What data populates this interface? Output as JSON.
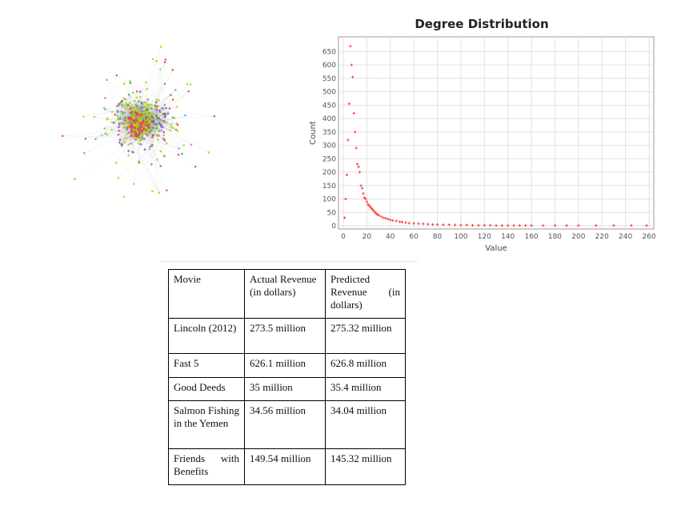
{
  "network_graph": {
    "palette": [
      "#e8337a",
      "#9be000",
      "#7b53d6",
      "#2fb7e0",
      "#c9b200",
      "#e84d2f",
      "#26b06b",
      "#d85cf0",
      "#3f6fe8",
      "#8a8a8a"
    ]
  },
  "chart_data": {
    "type": "scatter",
    "title": "Degree Distribution",
    "xlabel": "Value",
    "ylabel": "Count",
    "xlim": [
      0,
      260
    ],
    "ylim": [
      0,
      675
    ],
    "xticks": [
      0,
      20,
      40,
      60,
      80,
      100,
      120,
      140,
      160,
      180,
      200,
      220,
      240,
      260
    ],
    "yticks": [
      0,
      50,
      100,
      150,
      200,
      250,
      300,
      350,
      400,
      450,
      500,
      550,
      600,
      650
    ],
    "grid": true,
    "point_color": "#ff3333",
    "points": [
      [
        1,
        30
      ],
      [
        2,
        100
      ],
      [
        3,
        190
      ],
      [
        4,
        320
      ],
      [
        5,
        455
      ],
      [
        6,
        670
      ],
      [
        7,
        600
      ],
      [
        8,
        555
      ],
      [
        9,
        420
      ],
      [
        10,
        350
      ],
      [
        11,
        290
      ],
      [
        12,
        230
      ],
      [
        13,
        220
      ],
      [
        14,
        200
      ],
      [
        15,
        150
      ],
      [
        16,
        140
      ],
      [
        17,
        120
      ],
      [
        18,
        105
      ],
      [
        19,
        100
      ],
      [
        20,
        90
      ],
      [
        21,
        80
      ],
      [
        22,
        75
      ],
      [
        23,
        70
      ],
      [
        24,
        65
      ],
      [
        25,
        60
      ],
      [
        26,
        55
      ],
      [
        27,
        50
      ],
      [
        28,
        45
      ],
      [
        29,
        42
      ],
      [
        30,
        40
      ],
      [
        32,
        35
      ],
      [
        34,
        30
      ],
      [
        36,
        28
      ],
      [
        38,
        25
      ],
      [
        40,
        22
      ],
      [
        42,
        20
      ],
      [
        45,
        18
      ],
      [
        48,
        15
      ],
      [
        50,
        14
      ],
      [
        53,
        12
      ],
      [
        56,
        10
      ],
      [
        60,
        9
      ],
      [
        64,
        8
      ],
      [
        68,
        7
      ],
      [
        72,
        6
      ],
      [
        76,
        5
      ],
      [
        80,
        5
      ],
      [
        85,
        4
      ],
      [
        90,
        4
      ],
      [
        95,
        3
      ],
      [
        100,
        3
      ],
      [
        105,
        3
      ],
      [
        110,
        2
      ],
      [
        115,
        2
      ],
      [
        120,
        2
      ],
      [
        125,
        2
      ],
      [
        130,
        1
      ],
      [
        135,
        1
      ],
      [
        140,
        1
      ],
      [
        145,
        1
      ],
      [
        150,
        1
      ],
      [
        155,
        1
      ],
      [
        160,
        1
      ],
      [
        170,
        1
      ],
      [
        180,
        1
      ],
      [
        190,
        1
      ],
      [
        200,
        1
      ],
      [
        215,
        1
      ],
      [
        230,
        1
      ],
      [
        245,
        1
      ],
      [
        258,
        1
      ]
    ]
  },
  "table": {
    "headers": [
      "Movie",
      "Actual Revenue (in dollars)",
      "Predicted Revenue (in dollars)"
    ],
    "rows": [
      [
        "Lincoln (2012)",
        "273.5 million",
        "275.32 million"
      ],
      [
        "Fast 5",
        "626.1 million",
        "626.8 million"
      ],
      [
        "Good Deeds",
        "35 million",
        "35.4 million"
      ],
      [
        "Salmon Fishing in the Yemen",
        "34.56 million",
        "34.04 million"
      ],
      [
        "Friends with Benefits",
        "149.54 million",
        "145.32 million"
      ]
    ]
  }
}
